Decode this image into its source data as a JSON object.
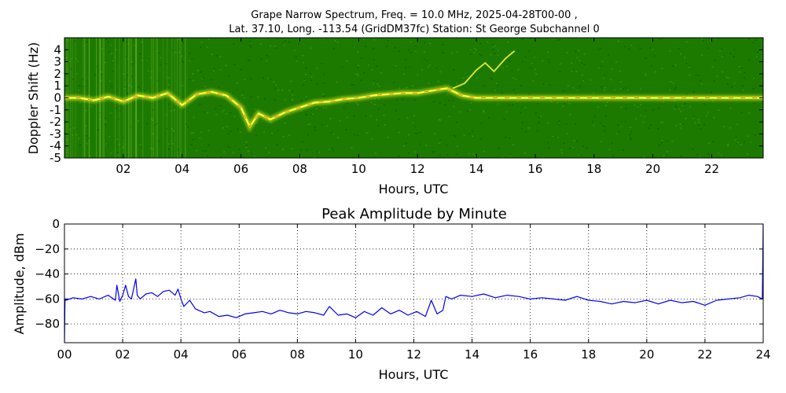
{
  "figure": {
    "title_line1": "Grape Narrow Spectrum, Freq. = 10.0 MHz, 2025-04-28T00-00 ,",
    "title_line2": "Lat.  37.10, Long. -113.54 (GridDM37fc) Station: St George Subchannel 0"
  },
  "colors": {
    "spectrum_background": "#1d7a00",
    "spectrum_trace": "#ffff33",
    "spectrum_peak": "#ff2200",
    "amplitude_line": "#0000ff",
    "grid": "#000000"
  },
  "chart_data": [
    {
      "type": "heatmap",
      "title": "",
      "xlabel": "Hours, UTC",
      "ylabel": "Doppler Shift (Hz)",
      "xlim": [
        0,
        23.75
      ],
      "ylim": [
        -5,
        5
      ],
      "xticks": [
        "02",
        "04",
        "06",
        "08",
        "10",
        "12",
        "14",
        "16",
        "18",
        "20",
        "22"
      ],
      "xtick_values": [
        2,
        4,
        6,
        8,
        10,
        12,
        14,
        16,
        18,
        20,
        22
      ],
      "yticks": [
        "4",
        "3",
        "2",
        "1",
        "0",
        "-1",
        "-2",
        "-3",
        "-4",
        "-5"
      ],
      "ytick_values": [
        4,
        3,
        2,
        1,
        0,
        -1,
        -2,
        -3,
        -4,
        -5
      ],
      "trace": {
        "x": [
          0,
          0.5,
          1,
          1.5,
          2,
          2.5,
          3,
          3.5,
          4,
          4.5,
          5,
          5.5,
          6,
          6.3,
          6.6,
          7,
          7.5,
          8,
          8.5,
          9,
          9.5,
          10,
          10.5,
          11,
          11.5,
          12,
          12.5,
          13,
          13.5,
          14,
          14.5,
          15,
          15.5,
          16,
          17,
          18,
          19,
          20,
          21,
          22,
          23,
          23.75
        ],
        "y": [
          0,
          0,
          -0.2,
          0.1,
          -0.3,
          0.2,
          0,
          0.4,
          -0.6,
          0.3,
          0.5,
          0.2,
          -0.8,
          -2.4,
          -1.3,
          -1.8,
          -1.2,
          -0.8,
          -0.4,
          -0.3,
          -0.1,
          0,
          0.2,
          0.3,
          0.4,
          0.4,
          0.6,
          0.8,
          0.2,
          0,
          0,
          0,
          0,
          0,
          0,
          0,
          0,
          0,
          0,
          0,
          0,
          0
        ]
      },
      "branch_trace": {
        "x": [
          13.2,
          13.6,
          14,
          14.3,
          14.6,
          15,
          15.3
        ],
        "y": [
          0.8,
          1.2,
          2.3,
          2.9,
          2.2,
          3.3,
          3.9
        ]
      }
    },
    {
      "type": "line",
      "title": "Peak Amplitude by Minute",
      "xlabel": "Hours, UTC",
      "ylabel": "Amplitude, dBm",
      "xlim": [
        0,
        24
      ],
      "ylim": [
        -95,
        0
      ],
      "grid": true,
      "xticks": [
        "00",
        "02",
        "04",
        "06",
        "08",
        "10",
        "12",
        "14",
        "16",
        "18",
        "20",
        "22",
        "24"
      ],
      "xtick_values": [
        0,
        2,
        4,
        6,
        8,
        10,
        12,
        14,
        16,
        18,
        20,
        22,
        24
      ],
      "yticks": [
        "0",
        "−20",
        "−40",
        "−60",
        "−80"
      ],
      "ytick_values": [
        0,
        -20,
        -40,
        -60,
        -80
      ],
      "series": [
        {
          "x": [
            0,
            0.02,
            0.05,
            0.3,
            0.6,
            0.9,
            1.2,
            1.5,
            1.75,
            1.8,
            1.9,
            2.0,
            2.1,
            2.2,
            2.3,
            2.45,
            2.5,
            2.6,
            2.8,
            3.0,
            3.2,
            3.4,
            3.6,
            3.8,
            3.9,
            4.0,
            4.1,
            4.3,
            4.5,
            4.8,
            5.0,
            5.3,
            5.6,
            5.9,
            6.2,
            6.5,
            6.8,
            7.1,
            7.4,
            7.7,
            8.0,
            8.3,
            8.6,
            8.9,
            9.1,
            9.4,
            9.7,
            10.0,
            10.3,
            10.6,
            10.9,
            11.2,
            11.5,
            11.8,
            12.1,
            12.4,
            12.6,
            12.8,
            13.0,
            13.1,
            13.3,
            13.6,
            14.0,
            14.4,
            14.8,
            15.2,
            15.6,
            16.0,
            16.4,
            16.8,
            17.2,
            17.6,
            18.0,
            18.4,
            18.8,
            19.2,
            19.6,
            20.0,
            20.4,
            20.8,
            21.2,
            21.6,
            22.0,
            22.4,
            22.8,
            23.2,
            23.5,
            23.8,
            23.97,
            24.0
          ],
          "values": [
            -95,
            -60,
            -61,
            -59,
            -60,
            -58,
            -60,
            -57,
            -61,
            -49,
            -62,
            -57,
            -49,
            -58,
            -60,
            -44,
            -57,
            -60,
            -56,
            -55,
            -58,
            -54,
            -53,
            -57,
            -52,
            -60,
            -66,
            -61,
            -68,
            -71,
            -70,
            -74,
            -73,
            -75,
            -72,
            -71,
            -70,
            -72,
            -69,
            -71,
            -72,
            -70,
            -71,
            -73,
            -66,
            -73,
            -72,
            -75,
            -70,
            -73,
            -67,
            -72,
            -69,
            -73,
            -70,
            -74,
            -61,
            -72,
            -69,
            -58,
            -60,
            -57,
            -58,
            -56,
            -59,
            -57,
            -58,
            -60,
            -59,
            -60,
            -61,
            -58,
            -61,
            -62,
            -64,
            -62,
            -63,
            -61,
            -64,
            -61,
            -63,
            -62,
            -65,
            -61,
            -60,
            -59,
            -57,
            -58,
            -60,
            0
          ]
        }
      ]
    }
  ]
}
